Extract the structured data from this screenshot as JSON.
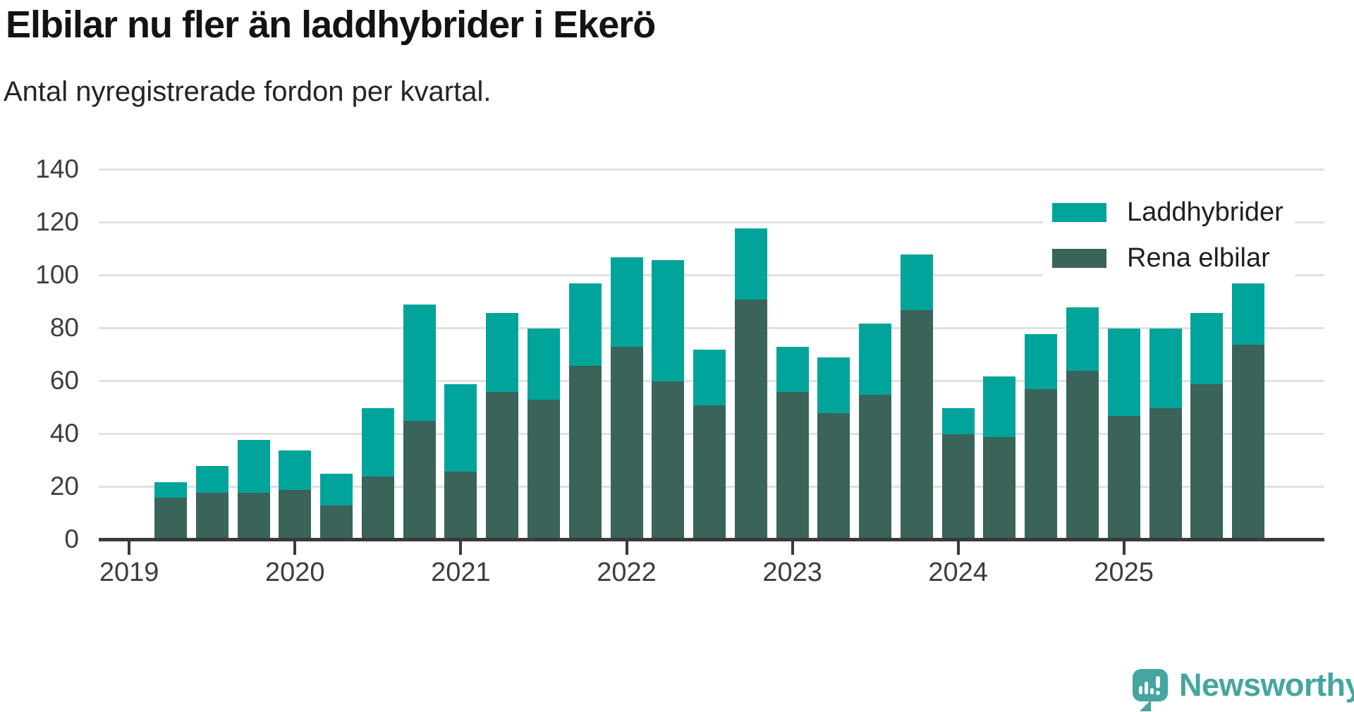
{
  "title": "Elbilar nu fler än laddhybrider i Ekerö",
  "subtitle": "Antal nyregistrerade fordon per kvartal.",
  "legend": [
    {
      "label": "Laddhybrider",
      "color": "#00a49b"
    },
    {
      "label": "Rena elbilar",
      "color": "#3a635a"
    }
  ],
  "branding": {
    "name": "Newsworthy",
    "color": "#45a5a0",
    "icon": "newsworthy-speech-bubble-chart-icon"
  },
  "colors": {
    "laddhybrider": "#00a49b",
    "rena_elbilar": "#3a635a",
    "gridline": "#e1e1e1",
    "axis": "#3a3a3a"
  },
  "chart_data": {
    "type": "bar",
    "stacked": true,
    "title": "Elbilar nu fler än laddhybrider i Ekerö",
    "subtitle": "Antal nyregistrerade fordon per kvartal.",
    "xlabel": "",
    "ylabel": "",
    "grid": "horizontal",
    "legend_position": "top-right",
    "ylim": [
      0,
      140
    ],
    "y_ticks": [
      0,
      20,
      40,
      60,
      80,
      100,
      120,
      140
    ],
    "x_tick_labels": [
      "2019",
      "2020",
      "2021",
      "2022",
      "2023",
      "2024",
      "2025"
    ],
    "x": [
      "2019-Q2",
      "2019-Q3",
      "2019-Q4",
      "2020-Q1",
      "2020-Q2",
      "2020-Q3",
      "2020-Q4",
      "2021-Q1",
      "2021-Q2",
      "2021-Q3",
      "2021-Q4",
      "2022-Q1",
      "2022-Q2",
      "2022-Q3",
      "2022-Q4",
      "2023-Q1",
      "2023-Q2",
      "2023-Q3",
      "2023-Q4",
      "2024-Q1",
      "2024-Q2",
      "2024-Q3",
      "2024-Q4",
      "2025-Q1",
      "2025-Q2",
      "2025-Q3",
      "2025-Q4"
    ],
    "series": [
      {
        "name": "Rena elbilar",
        "color": "#3a635a",
        "values": [
          16,
          18,
          18,
          19,
          13,
          24,
          45,
          26,
          56,
          53,
          66,
          73,
          60,
          51,
          91,
          56,
          48,
          55,
          87,
          40,
          39,
          57,
          64,
          47,
          50,
          59,
          74
        ]
      },
      {
        "name": "Laddhybrider",
        "color": "#00a49b",
        "values": [
          6,
          10,
          20,
          15,
          12,
          26,
          44,
          33,
          30,
          27,
          31,
          34,
          46,
          21,
          27,
          17,
          21,
          27,
          21,
          10,
          23,
          21,
          24,
          33,
          30,
          27,
          23
        ]
      }
    ],
    "totals": [
      22,
      28,
      38,
      34,
      25,
      50,
      89,
      59,
      86,
      80,
      97,
      107,
      106,
      72,
      118,
      73,
      69,
      82,
      108,
      50,
      62,
      78,
      88,
      80,
      80,
      86,
      97
    ]
  }
}
